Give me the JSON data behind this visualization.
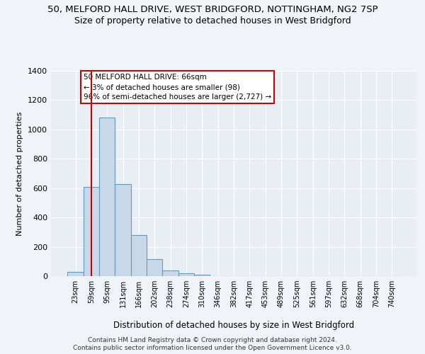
{
  "title": "50, MELFORD HALL DRIVE, WEST BRIDGFORD, NOTTINGHAM, NG2 7SP",
  "subtitle": "Size of property relative to detached houses in West Bridgford",
  "xlabel": "Distribution of detached houses by size in West Bridgford",
  "ylabel": "Number of detached properties",
  "categories": [
    "23sqm",
    "59sqm",
    "95sqm",
    "131sqm",
    "166sqm",
    "202sqm",
    "238sqm",
    "274sqm",
    "310sqm",
    "346sqm",
    "382sqm",
    "417sqm",
    "453sqm",
    "489sqm",
    "525sqm",
    "561sqm",
    "597sqm",
    "632sqm",
    "668sqm",
    "704sqm",
    "740sqm"
  ],
  "values": [
    30,
    610,
    1080,
    630,
    280,
    115,
    40,
    20,
    10,
    0,
    0,
    0,
    0,
    0,
    0,
    0,
    0,
    0,
    0,
    0,
    0
  ],
  "bar_color": "#c8d8e8",
  "bar_edge_color": "#6699bb",
  "vline_x": 1,
  "vline_color": "#cc0000",
  "ylim": [
    0,
    1400
  ],
  "yticks": [
    0,
    200,
    400,
    600,
    800,
    1000,
    1200,
    1400
  ],
  "annotation_text": "50 MELFORD HALL DRIVE: 66sqm\n← 3% of detached houses are smaller (98)\n96% of semi-detached houses are larger (2,727) →",
  "annotation_box_color": "#ffffff",
  "annotation_box_edge": "#cc0000",
  "footer1": "Contains HM Land Registry data © Crown copyright and database right 2024.",
  "footer2": "Contains public sector information licensed under the Open Government Licence v3.0.",
  "bg_color": "#f0f4f8",
  "plot_bg_color": "#e8eef4",
  "title_fontsize": 9.5,
  "subtitle_fontsize": 9
}
